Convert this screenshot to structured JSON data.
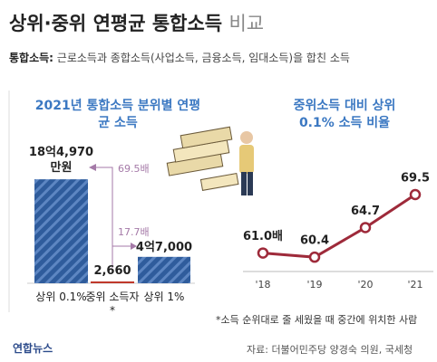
{
  "title": "상위·중위 연평균 통합소득",
  "title_suffix": "비교",
  "subtitle_label": "통합소득:",
  "subtitle_text": "근로소득과 종합소득(사업소득, 금융소득, 임대소득)을 합친 소득",
  "chart_data": [
    {
      "type": "bar",
      "title": "2021년 통합소득 분위별 연평균 소득",
      "categories": [
        "상위 0.1%",
        "중위 소득자*",
        "상위 1%"
      ],
      "values": [
        184970,
        2660,
        47000
      ],
      "value_labels": [
        "18억4,970 만원",
        "2,660",
        "4억7,000"
      ],
      "colors": [
        "#2f5c9c",
        "#c0392b",
        "#2f5c9c"
      ],
      "ylim": [
        0,
        190000
      ],
      "annotations": [
        "69.5배",
        "17.7배"
      ]
    },
    {
      "type": "line",
      "title": "중위소득 대비 상위 0.1% 소득 비율",
      "categories": [
        "'18",
        "'19",
        "'20",
        "'21"
      ],
      "values": [
        61.0,
        60.4,
        64.7,
        69.5
      ],
      "value_labels": [
        "61.0배",
        "60.4",
        "64.7",
        "69.5"
      ],
      "color": "#9e2a3a",
      "ylim": [
        57,
        72
      ]
    }
  ],
  "footnote": "*소득 순위대로 줄 세웠을 때 중간에 위치한 사람",
  "source": "자료: 더불어민주당 양경숙 의원, 국세청",
  "logo": "연합뉴스"
}
